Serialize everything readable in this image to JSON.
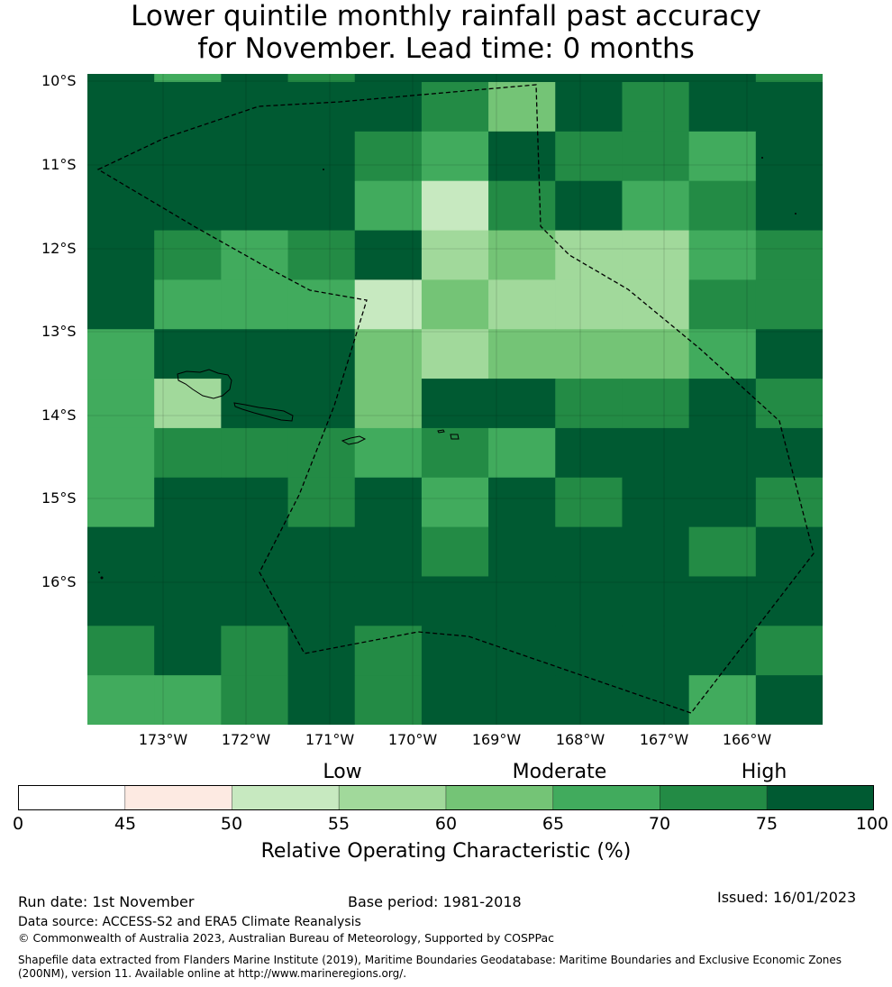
{
  "title_line1": "Lower quintile monthly rainfall past accuracy",
  "title_line2": "for November. Lead time: 0 months",
  "lat_labels": [
    "10°S",
    "11°S",
    "12°S",
    "13°S",
    "14°S",
    "15°S",
    "16°S"
  ],
  "lon_labels": [
    "173°W",
    "172°W",
    "171°W",
    "170°W",
    "169°W",
    "168°W",
    "167°W",
    "166°W"
  ],
  "categories": {
    "low": "Low",
    "moderate": "Moderate",
    "high": "High"
  },
  "colorbar": {
    "ticks": [
      "0",
      "45",
      "50",
      "55",
      "60",
      "65",
      "70",
      "75",
      "100"
    ],
    "label": "Relative Operating Characteristic (%)",
    "bins": [
      {
        "from": 0,
        "to": 45,
        "color": "#ffffff"
      },
      {
        "from": 45,
        "to": 50,
        "color": "#fdeae2"
      },
      {
        "from": 50,
        "to": 55,
        "color": "#c7e9c0"
      },
      {
        "from": 55,
        "to": 60,
        "color": "#a1d99b"
      },
      {
        "from": 60,
        "to": 65,
        "color": "#74c476"
      },
      {
        "from": 65,
        "to": 70,
        "color": "#41ab5d"
      },
      {
        "from": 70,
        "to": 75,
        "color": "#238b45"
      },
      {
        "from": 75,
        "to": 100,
        "color": "#005a32"
      }
    ]
  },
  "map_grid_levels": [
    [
      7,
      5,
      7,
      6,
      7,
      7,
      7,
      7,
      7,
      7,
      6
    ],
    [
      7,
      7,
      7,
      7,
      7,
      6,
      4,
      7,
      6,
      7,
      7
    ],
    [
      7,
      7,
      7,
      7,
      6,
      5,
      7,
      6,
      6,
      5,
      7
    ],
    [
      7,
      7,
      7,
      7,
      5,
      2,
      6,
      7,
      5,
      6,
      7
    ],
    [
      7,
      6,
      5,
      6,
      7,
      3,
      4,
      3,
      3,
      5,
      6
    ],
    [
      7,
      5,
      5,
      5,
      2,
      4,
      3,
      3,
      3,
      6,
      6
    ],
    [
      5,
      7,
      7,
      7,
      4,
      3,
      4,
      4,
      4,
      5,
      7
    ],
    [
      5,
      3,
      7,
      7,
      4,
      7,
      7,
      6,
      6,
      7,
      6
    ],
    [
      5,
      6,
      6,
      6,
      5,
      6,
      5,
      7,
      7,
      7,
      7
    ],
    [
      5,
      7,
      7,
      6,
      7,
      5,
      7,
      6,
      7,
      7,
      6
    ],
    [
      7,
      7,
      7,
      7,
      7,
      6,
      7,
      7,
      7,
      6,
      7
    ],
    [
      7,
      7,
      7,
      7,
      7,
      7,
      7,
      7,
      7,
      7,
      7
    ],
    [
      6,
      7,
      6,
      7,
      6,
      7,
      7,
      7,
      7,
      7,
      6
    ],
    [
      5,
      5,
      6,
      7,
      6,
      7,
      7,
      7,
      7,
      5,
      7
    ]
  ],
  "footer": {
    "run_date": "Run date: 1st November",
    "base_period": "Base period: 1981-2018",
    "issued": "Issued: 16/01/2023",
    "data_source": "Data source: ACCESS-S2 and ERA5 Climate Reanalysis",
    "copyright": "© Commonwealth of Australia 2023, Australian Bureau of Meteorology, Supported by COSPPac",
    "shapefile_line1": "Shapefile data extracted from Flanders Marine Institute (2019), Maritime Boundaries Geodatabase: Maritime Boundaries and Exclusive Economic Zones",
    "shapefile_line2": "(200NM), version 11. Available online at http://www.marineregions.org/."
  }
}
